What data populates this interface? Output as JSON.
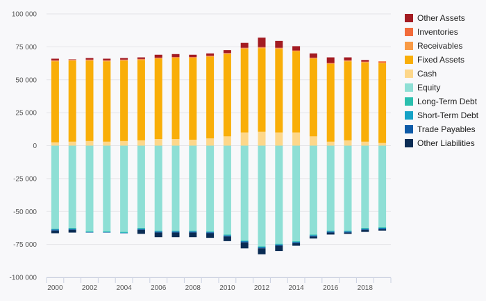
{
  "chart_data": {
    "type": "bar",
    "stacked": true,
    "x": [
      2000,
      2001,
      2002,
      2003,
      2004,
      2005,
      2006,
      2007,
      2008,
      2009,
      2010,
      2011,
      2012,
      2013,
      2014,
      2015,
      2016,
      2017,
      2018,
      2019
    ],
    "x_tick_labels": [
      "2000",
      "2002",
      "2004",
      "2006",
      "2008",
      "2010",
      "2012",
      "2014",
      "2016",
      "2018"
    ],
    "y_ticks": [
      -100000,
      -75000,
      -50000,
      -25000,
      0,
      25000,
      50000,
      75000,
      100000
    ],
    "y_tick_labels": [
      "-100 000",
      "-75 000",
      "-50 000",
      "-25 000",
      "0",
      "25 000",
      "50 000",
      "75 000",
      "100 000"
    ],
    "ylim": [
      -100000,
      100000
    ],
    "grid": true,
    "legend_position": "right",
    "positive_series": [
      {
        "name": "Cash",
        "color": "#fdd78a",
        "values": [
          2500,
          3000,
          3500,
          3000,
          3500,
          4000,
          5000,
          5000,
          4500,
          5500,
          7000,
          10000,
          10500,
          10000,
          10000,
          7000,
          3000,
          4000,
          3000,
          2000
        ]
      },
      {
        "name": "Fixed Assets",
        "color": "#f9ae08",
        "values": [
          61500,
          61500,
          61000,
          61000,
          61000,
          61000,
          61000,
          61500,
          62000,
          62000,
          62500,
          63500,
          63500,
          63500,
          61500,
          59000,
          59000,
          60000,
          60000,
          60500
        ]
      },
      {
        "name": "Receivables",
        "color": "#f99a45",
        "values": [
          500,
          500,
          500,
          500,
          500,
          500,
          500,
          500,
          500,
          500,
          500,
          500,
          500,
          500,
          500,
          500,
          500,
          500,
          500,
          500
        ]
      },
      {
        "name": "Inventories",
        "color": "#f26b3a",
        "values": [
          300,
          300,
          300,
          300,
          300,
          300,
          300,
          300,
          300,
          300,
          300,
          300,
          300,
          300,
          300,
          300,
          300,
          300,
          300,
          1000
        ]
      },
      {
        "name": "Other Assets",
        "color": "#a31b22",
        "values": [
          1200,
          200,
          1200,
          1200,
          1200,
          1200,
          2200,
          2200,
          1700,
          1700,
          2200,
          3700,
          7200,
          5200,
          3200,
          3200,
          4200,
          2200,
          1200,
          0
        ]
      }
    ],
    "negative_series": [
      {
        "name": "Equity",
        "color": "#8edfd5",
        "values": [
          -63000,
          -62500,
          -65000,
          -65000,
          -65500,
          -62500,
          -64500,
          -64500,
          -64500,
          -65000,
          -67500,
          -72000,
          -76500,
          -74500,
          -72500,
          -67500,
          -64500,
          -64500,
          -62500,
          -62000
        ]
      },
      {
        "name": "Long-Term Debt",
        "color": "#2bbfae",
        "values": [
          -500,
          -500,
          -500,
          -500,
          -500,
          -500,
          -500,
          -500,
          -500,
          -500,
          -500,
          -500,
          -500,
          -500,
          -500,
          -500,
          -500,
          -500,
          -500,
          -500
        ]
      },
      {
        "name": "Short-Term Debt",
        "color": "#15a2c6",
        "values": [
          -300,
          -300,
          -300,
          -300,
          -300,
          -300,
          -300,
          -300,
          -300,
          -300,
          -300,
          -300,
          -300,
          -300,
          -300,
          -300,
          -300,
          -300,
          -300,
          -300
        ]
      },
      {
        "name": "Trade Payables",
        "color": "#0d5aa7",
        "values": [
          -700,
          -700,
          -200,
          -200,
          -200,
          -700,
          -700,
          -700,
          -700,
          -700,
          -700,
          -700,
          -700,
          -700,
          -700,
          -700,
          -700,
          -700,
          -700,
          -700
        ]
      },
      {
        "name": "Other Liabilities",
        "color": "#0a2c54",
        "values": [
          -2000,
          -2000,
          0,
          0,
          0,
          -3000,
          -3500,
          -3500,
          -3500,
          -3500,
          -3500,
          -4500,
          -4500,
          -4000,
          -2000,
          -1500,
          -1500,
          -1000,
          -1500,
          -1000
        ]
      }
    ],
    "legend": [
      "Other Assets",
      "Inventories",
      "Receivables",
      "Fixed Assets",
      "Cash",
      "Equity",
      "Long-Term Debt",
      "Short-Term Debt",
      "Trade Payables",
      "Other Liabilities"
    ],
    "legend_colors": [
      "#a31b22",
      "#f26b3a",
      "#f99a45",
      "#f9ae08",
      "#fdd78a",
      "#8edfd5",
      "#2bbfae",
      "#15a2c6",
      "#0d5aa7",
      "#0a2c54"
    ]
  }
}
